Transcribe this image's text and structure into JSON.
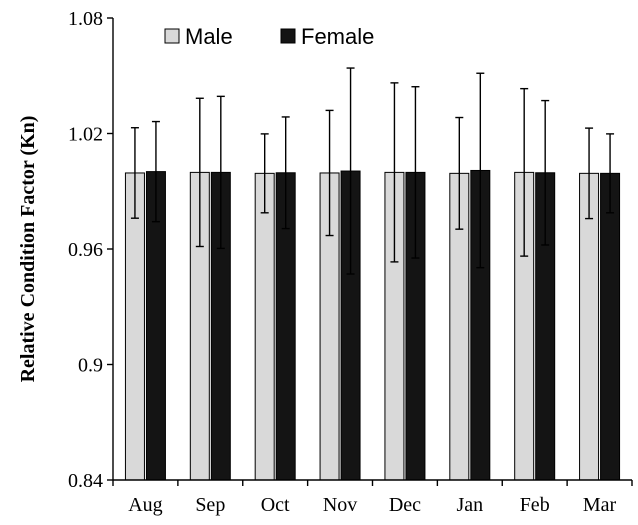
{
  "chart_data": {
    "type": "bar",
    "categories": [
      "Aug",
      "Sep",
      "Oct",
      "Nov",
      "Dec",
      "Jan",
      "Feb",
      "Mar"
    ],
    "series": [
      {
        "name": "Male",
        "color": "#d9d9d9",
        "values": [
          0.9995,
          0.9998,
          0.9993,
          0.9995,
          0.9998,
          0.9993,
          0.9998,
          0.9993
        ],
        "errors": [
          0.0235,
          0.0385,
          0.0205,
          0.0325,
          0.0465,
          0.029,
          0.0435,
          0.0235
        ]
      },
      {
        "name": "Female",
        "color": "#141414",
        "values": [
          1.0002,
          0.9998,
          0.9996,
          1.0005,
          0.9998,
          1.0008,
          0.9996,
          0.9993
        ],
        "errors": [
          0.026,
          0.0395,
          0.029,
          0.0535,
          0.0445,
          0.0505,
          0.0375,
          0.0205
        ]
      }
    ],
    "title": "",
    "xlabel": "",
    "ylabel": "Relative Condition Factor (Kn)",
    "ylim": [
      0.84,
      1.08
    ],
    "yticks": [
      0.84,
      0.9,
      0.96,
      1.02,
      1.08
    ],
    "ytick_labels": [
      "0.84",
      "0.9",
      "0.96",
      "1.02",
      "1.08"
    ],
    "grid": false,
    "legend_position": "top-left"
  }
}
